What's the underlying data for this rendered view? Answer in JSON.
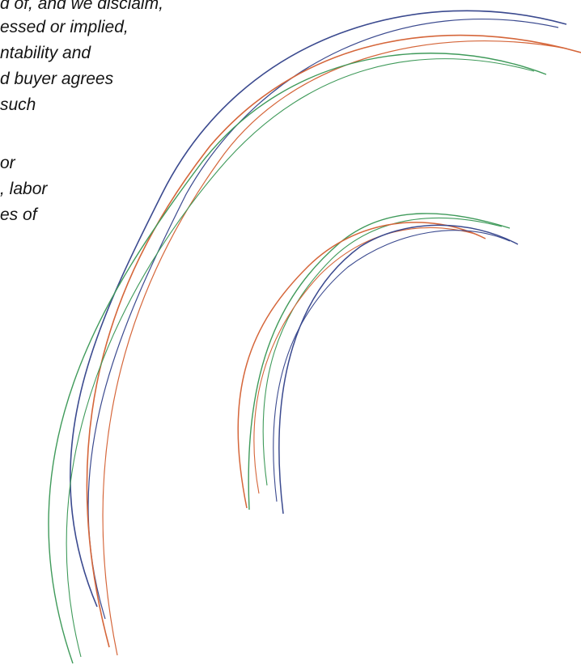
{
  "document": {
    "lines": [
      "d of, and we disclaim,",
      "essed or implied,",
      "ntability and",
      "d buyer agrees",
      "such",
      "or",
      ", labor",
      "es of"
    ]
  },
  "artwork": {
    "stroke_colors": {
      "blue": "#3b4a8f",
      "orange": "#d5663a",
      "green": "#3f9a5a"
    }
  }
}
